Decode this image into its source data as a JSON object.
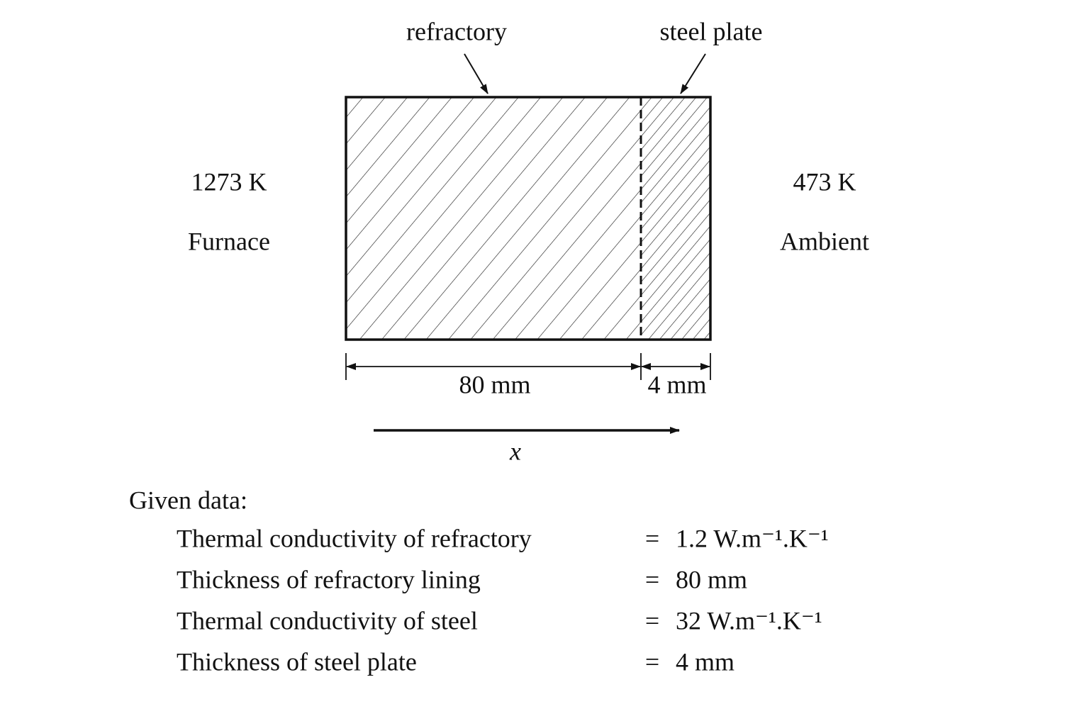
{
  "diagram": {
    "labels": {
      "refractory": "refractory",
      "steel": "steel plate"
    },
    "left": {
      "temperature": "1273 K",
      "name": "Furnace"
    },
    "right": {
      "temperature": "473 K",
      "name": "Ambient"
    },
    "dimensions": {
      "refractory": "80 mm",
      "steel": "4 mm"
    },
    "axis": "x"
  },
  "given": {
    "title": "Given data:",
    "rows": [
      {
        "label": "Thermal conductivity of refractory",
        "relation": "=",
        "value": "1.2 W.m⁻¹.K⁻¹"
      },
      {
        "label": "Thickness of refractory lining",
        "relation": "=",
        "value": "80 mm"
      },
      {
        "label": "Thermal conductivity of steel",
        "relation": "=",
        "value": "32 W.m⁻¹.K⁻¹"
      },
      {
        "label": "Thickness of steel plate",
        "relation": "=",
        "value": "4 mm"
      }
    ]
  }
}
